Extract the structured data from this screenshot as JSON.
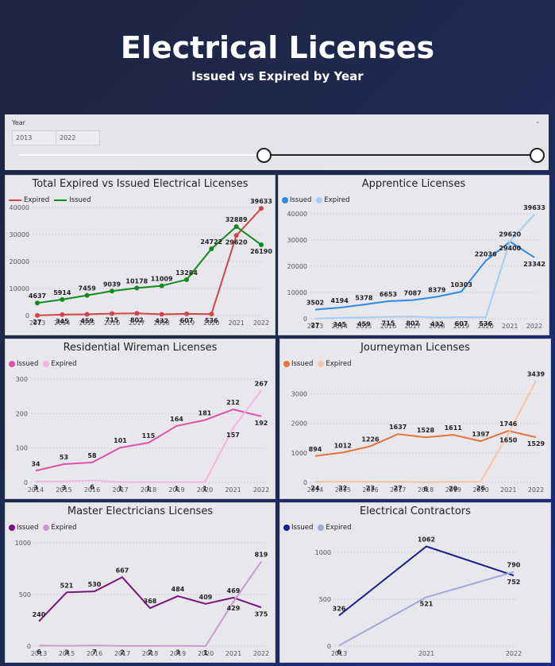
{
  "header": {
    "title": "Electrical Licenses",
    "subtitle": "Issued vs Expired by Year"
  },
  "slicer": {
    "label": "Year",
    "start": "2013",
    "end": "2022",
    "selected_range": [
      "2013",
      "2022"
    ]
  },
  "chart_data": [
    {
      "type": "line",
      "title": "Total Expired vs Issued Electrical Licenses",
      "legend_style": "line",
      "x": [
        "2013",
        "2014",
        "2015",
        "2016",
        "2017",
        "2018",
        "2019",
        "2020",
        "2021",
        "2022"
      ],
      "ylim": [
        0,
        40000
      ],
      "yticks": [
        0,
        10000,
        20000,
        30000,
        40000
      ],
      "series": [
        {
          "name": "Expired",
          "color": "#d2444c",
          "values": [
            27,
            345,
            459,
            715,
            802,
            432,
            607,
            536,
            29620,
            39633
          ]
        },
        {
          "name": "Issued",
          "color": "#138a1e",
          "values": [
            4637,
            5914,
            7459,
            9039,
            10178,
            11009,
            13284,
            24722,
            32889,
            26190
          ]
        }
      ]
    },
    {
      "type": "line",
      "title": "Apprentice Licenses",
      "legend_style": "dot",
      "x": [
        "2013",
        "2014",
        "2015",
        "2016",
        "2017",
        "2018",
        "2019",
        "2020",
        "2021",
        "2022"
      ],
      "ylim": [
        0,
        40000
      ],
      "yticks": [
        0,
        10000,
        20000,
        30000,
        40000
      ],
      "series": [
        {
          "name": "Issued",
          "color": "#2e8ae6",
          "values": [
            3502,
            4194,
            5378,
            6653,
            7087,
            8379,
            10303,
            22036,
            29400,
            23342
          ]
        },
        {
          "name": "Expired",
          "color": "#a4cdf6",
          "values": [
            27,
            345,
            459,
            715,
            802,
            432,
            607,
            536,
            29620,
            39633
          ]
        }
      ]
    },
    {
      "type": "line",
      "title": "Residential Wireman Licenses",
      "legend_style": "dot",
      "x": [
        "2014",
        "2015",
        "2016",
        "2017",
        "2018",
        "2019",
        "2020",
        "2021",
        "2022"
      ],
      "ylim": [
        0,
        300
      ],
      "yticks": [
        0,
        100,
        200,
        300
      ],
      "series": [
        {
          "name": "Issued",
          "color": "#e050a8",
          "values": [
            34,
            53,
            58,
            101,
            115,
            164,
            181,
            212,
            192
          ]
        },
        {
          "name": "Expired",
          "color": "#f3b6de",
          "values": [
            3,
            3,
            6,
            1,
            1,
            1,
            1,
            157,
            267
          ]
        }
      ]
    },
    {
      "type": "line",
      "title": "Journeyman Licenses",
      "legend_style": "dot",
      "x": [
        "2014",
        "2015",
        "2016",
        "2017",
        "2018",
        "2019",
        "2020",
        "2021",
        "2022"
      ],
      "ylim": [
        0,
        3500
      ],
      "yticks": [
        0,
        1000,
        2000,
        3000
      ],
      "series": [
        {
          "name": "Issued",
          "color": "#e2733a",
          "values": [
            894,
            1012,
            1226,
            1637,
            1528,
            1611,
            1397,
            1746,
            1529
          ]
        },
        {
          "name": "Expired",
          "color": "#f5c6a9",
          "values": [
            24,
            32,
            23,
            27,
            6,
            20,
            26,
            1650,
            3439
          ]
        }
      ]
    },
    {
      "type": "line",
      "title": "Master Electricians Licenses",
      "legend_style": "dot",
      "x": [
        "2013",
        "2015",
        "2016",
        "2017",
        "2018",
        "2019",
        "2020",
        "2021",
        "2022"
      ],
      "ylim": [
        0,
        1000
      ],
      "yticks": [
        0,
        500,
        1000
      ],
      "series": [
        {
          "name": "Issued",
          "color": "#7a147e",
          "values": [
            240,
            521,
            530,
            667,
            368,
            484,
            409,
            469,
            375
          ]
        },
        {
          "name": "Expired",
          "color": "#c99ad0",
          "values": [
            6,
            3,
            7,
            2,
            2,
            3,
            1,
            429,
            819
          ]
        }
      ]
    },
    {
      "type": "line",
      "title": "Electrical Contractors",
      "legend_style": "dot",
      "x": [
        "2013",
        "2021",
        "2022"
      ],
      "ylim": [
        0,
        1100
      ],
      "yticks": [
        0,
        500,
        1000
      ],
      "series": [
        {
          "name": "Issued",
          "color": "#1a1f8f",
          "values": [
            326,
            1062,
            752
          ]
        },
        {
          "name": "Expired",
          "color": "#a2a8de",
          "values": [
            6,
            521,
            790
          ]
        }
      ]
    }
  ]
}
